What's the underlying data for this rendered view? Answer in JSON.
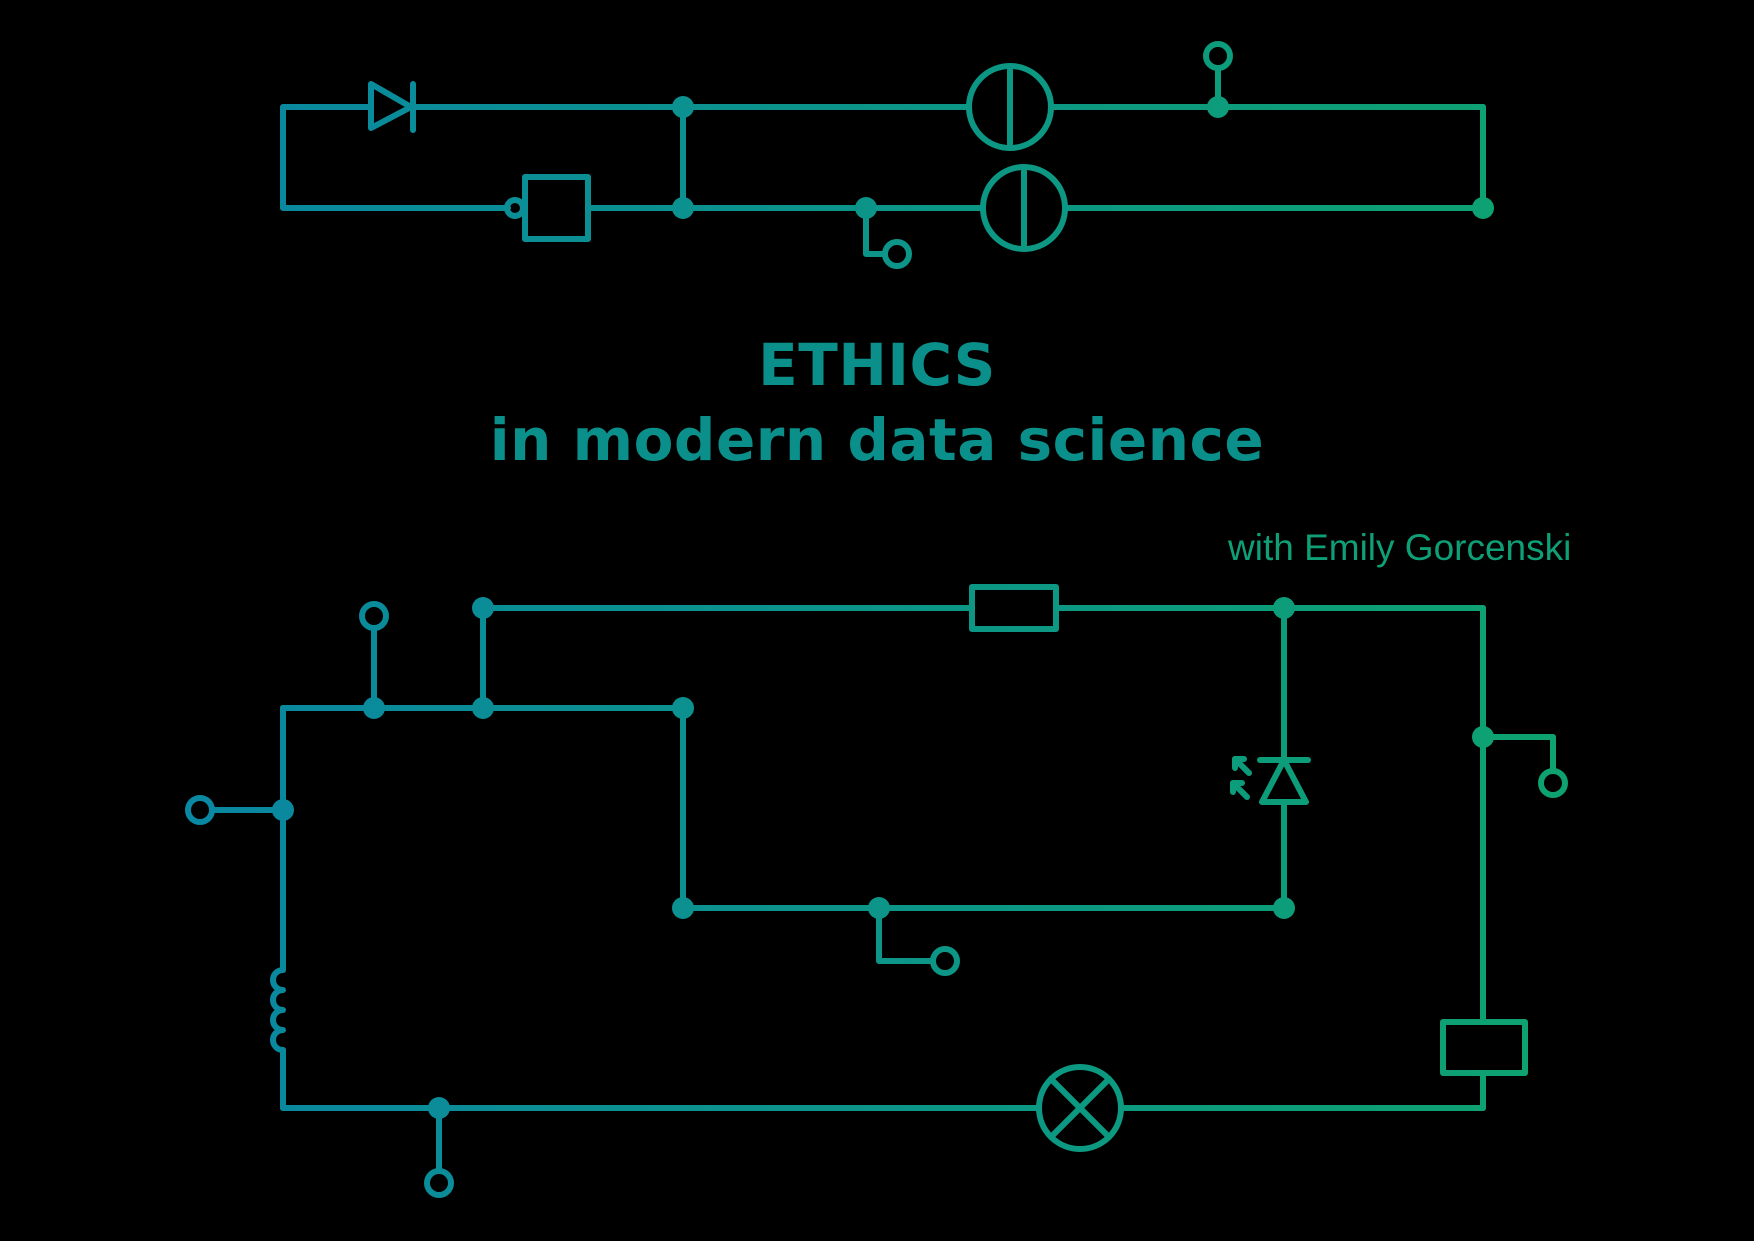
{
  "title": {
    "line1": "ETHICS",
    "line2": "in modern data science"
  },
  "author": "with Emily Gorcenski",
  "colors": {
    "background": "#000000",
    "gradient_start": "#0a87a2",
    "gradient_end": "#0ea36e",
    "title": "#0b8f8a",
    "author": "#0f9f76"
  },
  "circuits": [
    {
      "name": "top-circuit",
      "components": [
        "diode-icon",
        "nand-gate-icon",
        "ammeter-icon",
        "voltmeter-icon",
        "switch-terminal-icon"
      ]
    },
    {
      "name": "bottom-circuit",
      "components": [
        "resistor-icon",
        "led-icon",
        "inductor-icon",
        "lamp-icon",
        "relay-coil-icon",
        "switch-terminal-icon"
      ]
    }
  ]
}
